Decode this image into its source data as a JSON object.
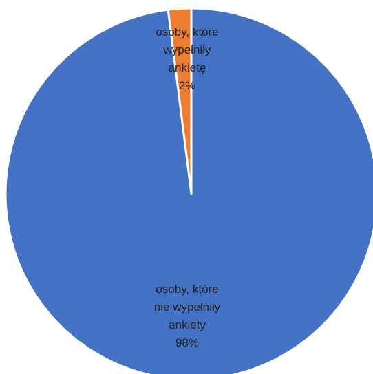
{
  "chart_data": {
    "type": "pie",
    "title": "",
    "start_angle_deg": 0,
    "direction": "clockwise",
    "slices": [
      {
        "label_lines": [
          "osoby, które",
          "wypełniły",
          "ankietę"
        ],
        "value_label": "2%",
        "value": 2,
        "color": "#ED7D31"
      },
      {
        "label_lines": [
          "osoby, które",
          "nie wypełniły",
          "ankiety"
        ],
        "value_label": "98%",
        "value": 98,
        "color": "#4472C4"
      }
    ],
    "slice_border_color": "#ffffff",
    "legend": "none"
  }
}
